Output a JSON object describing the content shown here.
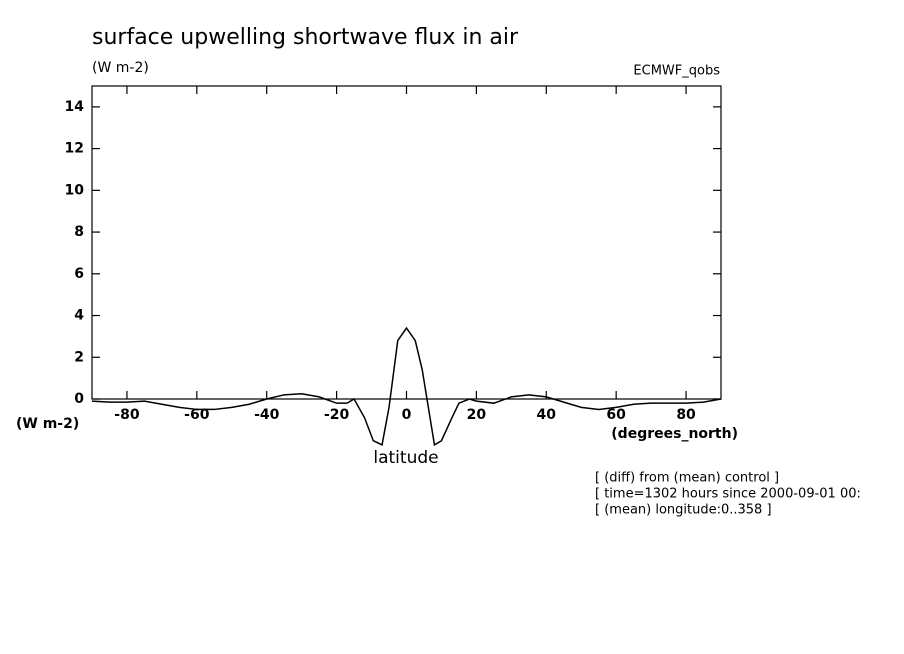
{
  "chart_data": {
    "type": "line",
    "title": "surface upwelling shortwave flux in air",
    "ylabel": "(W m-2)",
    "dataset": "ECMWF_qobs",
    "value_axis_label": "(W m-2)",
    "xunits": "(degrees_north)",
    "xlabel": "latitude",
    "annotations": [
      "[ (diff) from (mean) control ]",
      "[ time=1302 hours since 2000-09-01 00:",
      "[ (mean) longitude:0..358 ]"
    ],
    "xlim": [
      -90,
      90
    ],
    "ylim": [
      0,
      15
    ],
    "xticks": [
      -80,
      -60,
      -40,
      -20,
      0,
      20,
      40,
      60,
      80
    ],
    "yticks": [
      0,
      2,
      4,
      6,
      8,
      10,
      12,
      14
    ],
    "x": [
      -90,
      -85,
      -80,
      -75,
      -70,
      -65,
      -60,
      -55,
      -50,
      -45,
      -40,
      -35,
      -30,
      -25,
      -20,
      -17,
      -15,
      -12,
      -9.5,
      -7,
      -5,
      -2.5,
      0,
      2.5,
      4.5,
      8,
      10,
      13,
      15,
      18,
      20,
      25,
      30,
      35,
      40,
      45,
      50,
      55,
      60,
      65,
      70,
      75,
      80,
      85,
      90
    ],
    "series": [
      {
        "color": "#000000",
        "values": [
          -0.1,
          -0.15,
          -0.15,
          -0.1,
          -0.25,
          -0.4,
          -0.5,
          -0.5,
          -0.4,
          -0.25,
          0,
          0.2,
          0.25,
          0.1,
          -0.2,
          -0.2,
          0,
          -0.9,
          -2.0,
          -2.2,
          -0.4,
          2.8,
          3.4,
          2.8,
          1.4,
          -2.2,
          -2.0,
          -0.9,
          -0.2,
          0,
          -0.1,
          -0.2,
          0.1,
          0.2,
          0.1,
          -0.15,
          -0.4,
          -0.5,
          -0.4,
          -0.25,
          -0.2,
          -0.2,
          -0.2,
          -0.15,
          0
        ]
      }
    ]
  }
}
